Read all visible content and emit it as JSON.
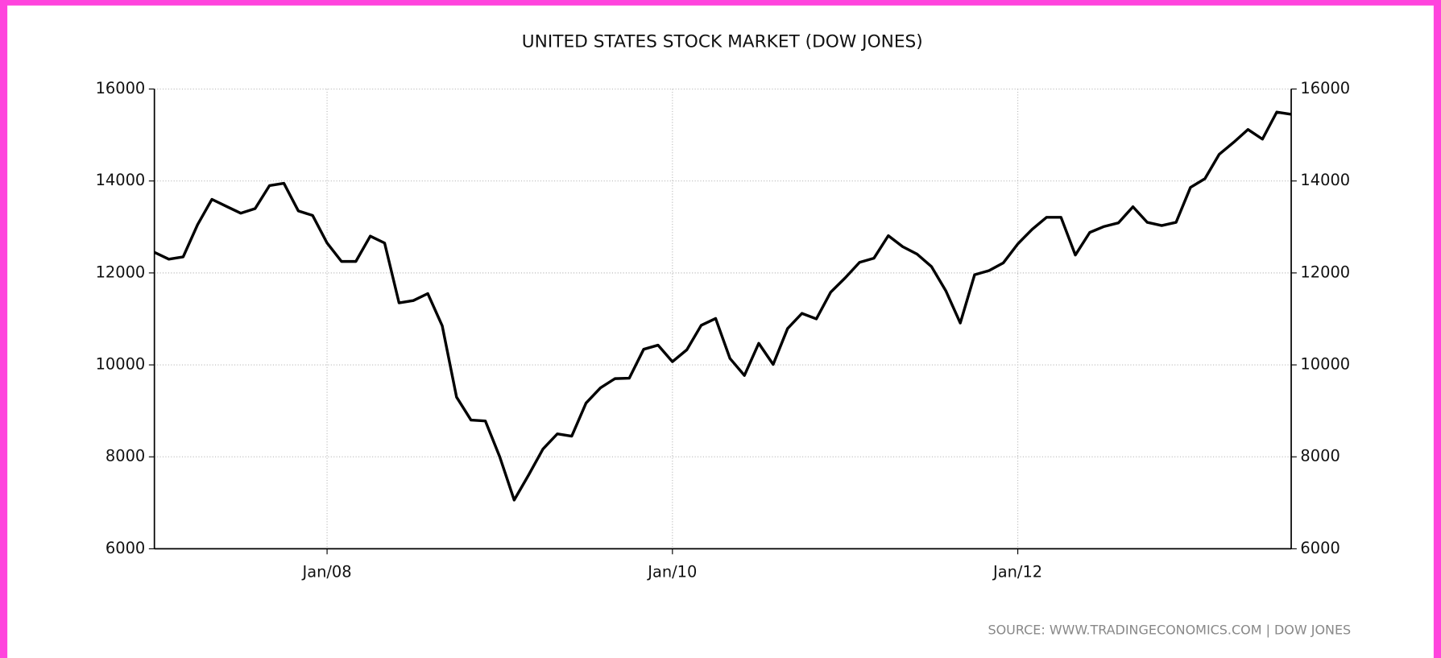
{
  "chart_data": {
    "type": "line",
    "title": "UNITED STATES STOCK MARKET (DOW JONES)",
    "source": "SOURCE:  WWW.TRADINGECONOMICS.COM  |  DOW JONES",
    "x": [
      "2007-01",
      "2007-02",
      "2007-03",
      "2007-04",
      "2007-05",
      "2007-06",
      "2007-07",
      "2007-08",
      "2007-09",
      "2007-10",
      "2007-11",
      "2007-12",
      "2008-01",
      "2008-02",
      "2008-03",
      "2008-04",
      "2008-05",
      "2008-06",
      "2008-07",
      "2008-08",
      "2008-09",
      "2008-10",
      "2008-11",
      "2008-12",
      "2009-01",
      "2009-02",
      "2009-03",
      "2009-04",
      "2009-05",
      "2009-06",
      "2009-07",
      "2009-08",
      "2009-09",
      "2009-10",
      "2009-11",
      "2009-12",
      "2010-01",
      "2010-02",
      "2010-03",
      "2010-04",
      "2010-05",
      "2010-06",
      "2010-07",
      "2010-08",
      "2010-09",
      "2010-10",
      "2010-11",
      "2010-12",
      "2011-01",
      "2011-02",
      "2011-03",
      "2011-04",
      "2011-05",
      "2011-06",
      "2011-07",
      "2011-08",
      "2011-09",
      "2011-10",
      "2011-11",
      "2011-12",
      "2012-01",
      "2012-02",
      "2012-03",
      "2012-04",
      "2012-05",
      "2012-06",
      "2012-07",
      "2012-08",
      "2012-09",
      "2012-10",
      "2012-11",
      "2012-12",
      "2013-01",
      "2013-02",
      "2013-03",
      "2013-04",
      "2013-05",
      "2013-06",
      "2013-07",
      "2013-08"
    ],
    "values": [
      12450,
      12300,
      12350,
      13050,
      13600,
      13450,
      13300,
      13400,
      13900,
      13950,
      13350,
      13250,
      12650,
      12250,
      12250,
      12800,
      12650,
      11350,
      11400,
      11550,
      10850,
      9300,
      8800,
      8780,
      8000,
      7060,
      7600,
      8170,
      8500,
      8450,
      9170,
      9500,
      9700,
      9710,
      10340,
      10430,
      10070,
      10330,
      10860,
      11010,
      10140,
      9770,
      10470,
      10010,
      10790,
      11120,
      11000,
      11580,
      11890,
      12230,
      12320,
      12810,
      12570,
      12410,
      12140,
      11610,
      10910,
      11960,
      12050,
      12220,
      12630,
      12950,
      13210,
      13210,
      12390,
      12880,
      13010,
      13090,
      13440,
      13100,
      13030,
      13100,
      13860,
      14050,
      14580,
      14840,
      15120,
      14910,
      15500,
      15450
    ],
    "color": "#000000",
    "xlim": [
      "2007-01",
      "2013-08"
    ],
    "xticks": [
      {
        "value": "2008-01",
        "label": "Jan/08"
      },
      {
        "value": "2010-01",
        "label": "Jan/10"
      },
      {
        "value": "2012-01",
        "label": "Jan/12"
      }
    ],
    "ylim": [
      6000,
      16000
    ],
    "yticks": [
      6000,
      8000,
      10000,
      12000,
      14000,
      16000
    ],
    "grid": true
  }
}
